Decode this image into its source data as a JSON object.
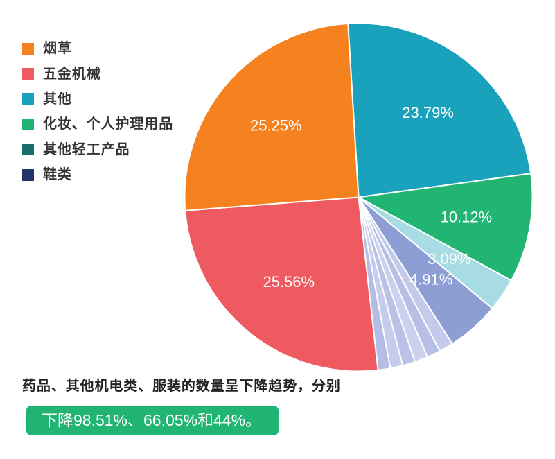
{
  "chart_data": {
    "type": "pie",
    "legend_position": "top-left",
    "legend": [
      {
        "label": "烟草",
        "color": "#F5821F"
      },
      {
        "label": "五金机械",
        "color": "#EF5A61"
      },
      {
        "label": "其他",
        "color": "#1AA2BD"
      },
      {
        "label": "化妆、个人护理用品",
        "color": "#22B473"
      },
      {
        "label": "其他轻工产品",
        "color": "#166F6D"
      },
      {
        "label": "鞋类",
        "color": "#233469"
      }
    ],
    "slices": [
      {
        "value": 23.79,
        "label": "23.79%",
        "color": "#1AA2BD"
      },
      {
        "value": 10.12,
        "label": "10.12%",
        "color": "#22B473"
      },
      {
        "value": 3.09,
        "label": "3.09%",
        "color": "#A7DCE5"
      },
      {
        "value": 4.91,
        "label": "4.91%",
        "color": "#8C9ED4"
      },
      {
        "value": 1.32,
        "color": "#C4CAEB"
      },
      {
        "value": 1.26,
        "color": "#B7BFE5"
      },
      {
        "value": 1.22,
        "color": "#CBD0EE"
      },
      {
        "value": 1.18,
        "color": "#BAC2E7"
      },
      {
        "value": 1.16,
        "color": "#C6CCEC"
      },
      {
        "value": 1.14,
        "color": "#B4BDE4"
      },
      {
        "value": 25.56,
        "label": "25.56%",
        "color": "#EF5A61"
      },
      {
        "value": 25.25,
        "label": "25.25%",
        "color": "#F5821F"
      }
    ]
  },
  "caption": {
    "text": "药品、其他机电类、服装的数量呈下降趋势，分别",
    "highlight": "下降98.51%、66.05%和44%。",
    "highlight_color": "#22B473"
  }
}
